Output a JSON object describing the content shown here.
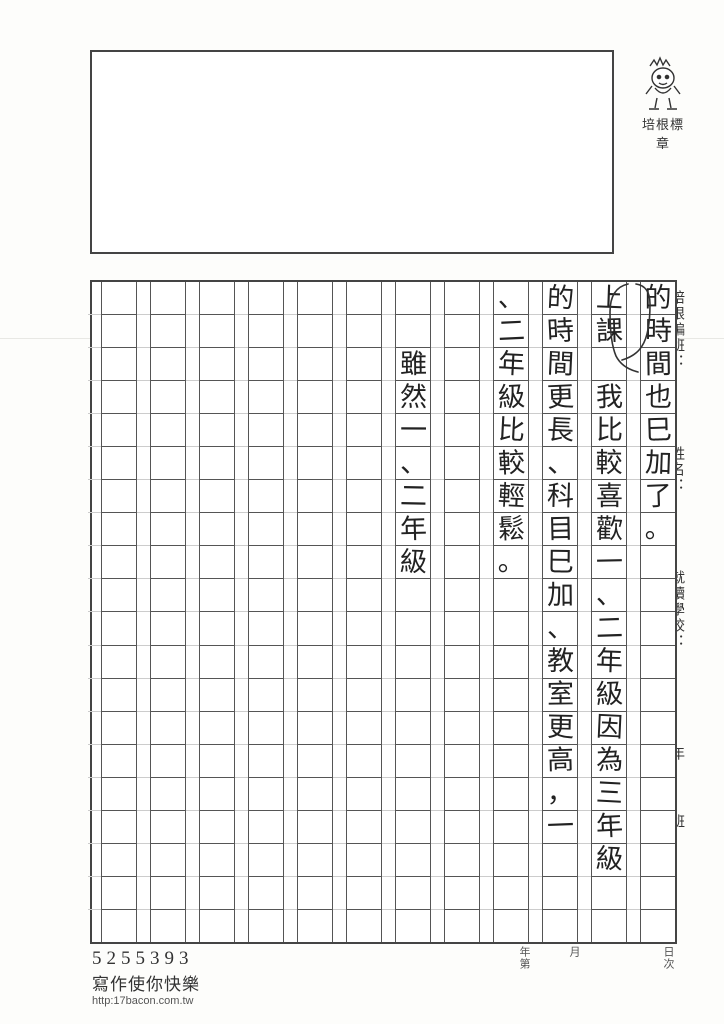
{
  "mascot_label": "培根標章",
  "side_labels": {
    "col1_a": "培根編班：",
    "col1_b": "姓名：",
    "col1_c": "就讀學校：",
    "col2_a": "年",
    "col2_b": "班"
  },
  "under_labels": {
    "ri": "日",
    "ci": "次",
    "yue": "月",
    "nian": "年",
    "di": "第"
  },
  "grid": {
    "columns": 12,
    "rows": 20,
    "text_columns": [
      "的時間也巳加了。",
      "上課　我比較喜歡一、二年級因為三年級",
      "的時間更長、科目巳加、教室更高，一",
      "、二年級比較輕鬆。",
      "",
      "　　雖然一、二年級",
      "",
      "",
      "",
      "",
      "",
      ""
    ]
  },
  "correction": {
    "note": "bracket mark around 上課 in column 2"
  },
  "footer": {
    "number": "5255393",
    "slogan": "寫作使你快樂",
    "url": "http:17bacon.com.tw"
  },
  "colors": {
    "ink": "#222222",
    "grid": "#444444",
    "paper": "#fdfdfb"
  }
}
